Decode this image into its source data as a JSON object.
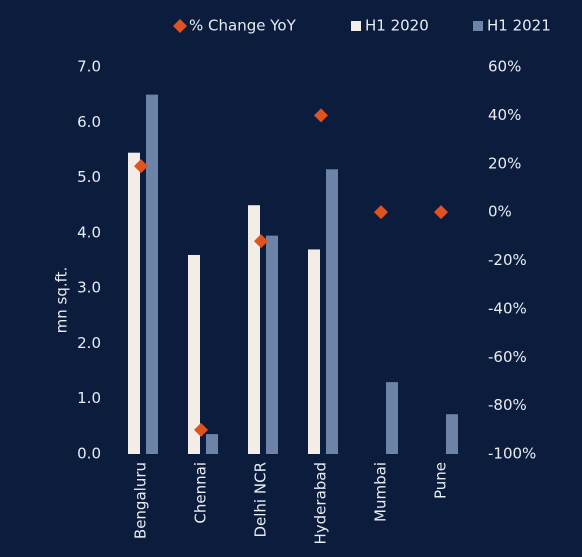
{
  "chart_data": {
    "type": "bar",
    "categories": [
      "Bengaluru",
      "Chennai",
      "Delhi NCR",
      "Hyderabad",
      "Mumbai",
      "Pune"
    ],
    "series": [
      {
        "name": "% Change YoY",
        "color": "#e0531f",
        "marker": "diamond",
        "axis": "y2",
        "values": [
          19,
          -90,
          -12,
          40,
          0,
          0
        ]
      },
      {
        "name": "H1 2020",
        "color": "#f3ede8",
        "values": [
          5.45,
          3.6,
          4.5,
          3.7,
          null,
          null
        ]
      },
      {
        "name": "H1 2021",
        "color": "#6d83a8",
        "values": [
          6.5,
          0.36,
          3.95,
          5.15,
          1.3,
          0.72
        ]
      }
    ],
    "ylabel": "mn sq.ft.",
    "ylim": [
      0,
      7
    ],
    "yticks": [
      {
        "value": 0,
        "label": "0.0"
      },
      {
        "value": 1,
        "label": "1.0"
      },
      {
        "value": 2,
        "label": "2.0"
      },
      {
        "value": 3,
        "label": "3.0"
      },
      {
        "value": 4,
        "label": "4.0"
      },
      {
        "value": 5,
        "label": "5.0"
      },
      {
        "value": 6,
        "label": "6.0"
      },
      {
        "value": 7,
        "label": "7.0"
      }
    ],
    "y2lim": [
      -100,
      60
    ],
    "y2ticks": [
      {
        "value": -100,
        "label": "-100%"
      },
      {
        "value": -80,
        "label": "-80%"
      },
      {
        "value": -60,
        "label": "-60%"
      },
      {
        "value": -40,
        "label": "-40%"
      },
      {
        "value": -20,
        "label": "-20%"
      },
      {
        "value": 0,
        "label": "0%"
      },
      {
        "value": 20,
        "label": "20%"
      },
      {
        "value": 40,
        "label": "40%"
      },
      {
        "value": 60,
        "label": "60%"
      }
    ],
    "legend": "top"
  }
}
